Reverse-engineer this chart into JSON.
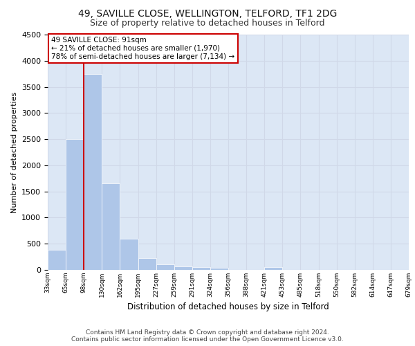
{
  "title_line1": "49, SAVILLE CLOSE, WELLINGTON, TELFORD, TF1 2DG",
  "title_line2": "Size of property relative to detached houses in Telford",
  "xlabel": "Distribution of detached houses by size in Telford",
  "ylabel": "Number of detached properties",
  "bar_values": [
    380,
    2500,
    3750,
    1650,
    600,
    230,
    110,
    60,
    50,
    40,
    0,
    0,
    50,
    0,
    0,
    0,
    0,
    0,
    0,
    0
  ],
  "categories": [
    "33sqm",
    "65sqm",
    "98sqm",
    "130sqm",
    "162sqm",
    "195sqm",
    "227sqm",
    "259sqm",
    "291sqm",
    "324sqm",
    "356sqm",
    "388sqm",
    "421sqm",
    "453sqm",
    "485sqm",
    "518sqm",
    "550sqm",
    "582sqm",
    "614sqm",
    "647sqm",
    "679sqm"
  ],
  "bar_color": "#aec6e8",
  "grid_color": "#d0d8e8",
  "background_color": "#dce7f5",
  "vline_color": "#cc0000",
  "annotation_text": "49 SAVILLE CLOSE: 91sqm\n← 21% of detached houses are smaller (1,970)\n78% of semi-detached houses are larger (7,134) →",
  "annotation_box_color": "#cc0000",
  "ylim": [
    0,
    4500
  ],
  "yticks": [
    0,
    500,
    1000,
    1500,
    2000,
    2500,
    3000,
    3500,
    4000,
    4500
  ],
  "footer_line1": "Contains HM Land Registry data © Crown copyright and database right 2024.",
  "footer_line2": "Contains public sector information licensed under the Open Government Licence v3.0.",
  "title_fontsize": 10,
  "subtitle_fontsize": 9
}
